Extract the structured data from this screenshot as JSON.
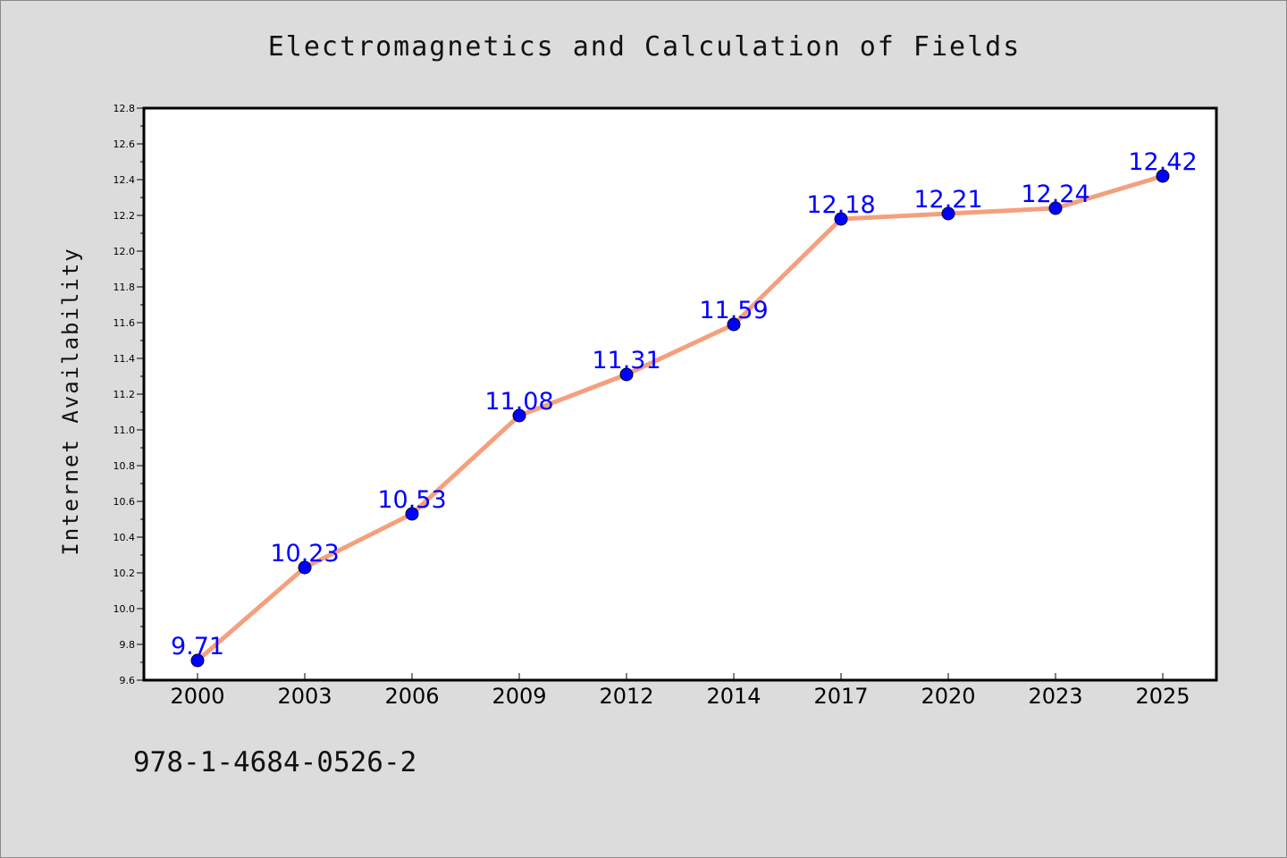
{
  "chart_data": {
    "type": "line",
    "title": "Electromagnetics and Calculation of Fields",
    "xlabel": "",
    "ylabel": "Internet Availability",
    "categories": [
      "2000",
      "2003",
      "2006",
      "2009",
      "2012",
      "2014",
      "2017",
      "2020",
      "2023",
      "2025"
    ],
    "series": [
      {
        "values": [
          9.71,
          10.23,
          10.53,
          11.08,
          11.31,
          11.59,
          12.18,
          12.21,
          12.24,
          12.42
        ],
        "labels": [
          "9.71",
          "10.23",
          "10.53",
          "11.08",
          "11.31",
          "11.59",
          "12.18",
          "12.21",
          "12.24",
          "12.42"
        ],
        "line_color": "#f4a07e",
        "marker_color": "#0000ff"
      }
    ],
    "ylim": [
      9.6,
      12.8
    ],
    "yticks": [
      "9.6",
      "9.8",
      "10.0",
      "10.2",
      "10.4",
      "10.6",
      "10.8",
      "11.0",
      "11.2",
      "11.4",
      "11.6",
      "11.8",
      "12.0",
      "12.2",
      "12.4",
      "12.6",
      "12.8"
    ],
    "grid": false,
    "legend": "none"
  },
  "footer": {
    "isbn": "978-1-4684-0526-2"
  }
}
